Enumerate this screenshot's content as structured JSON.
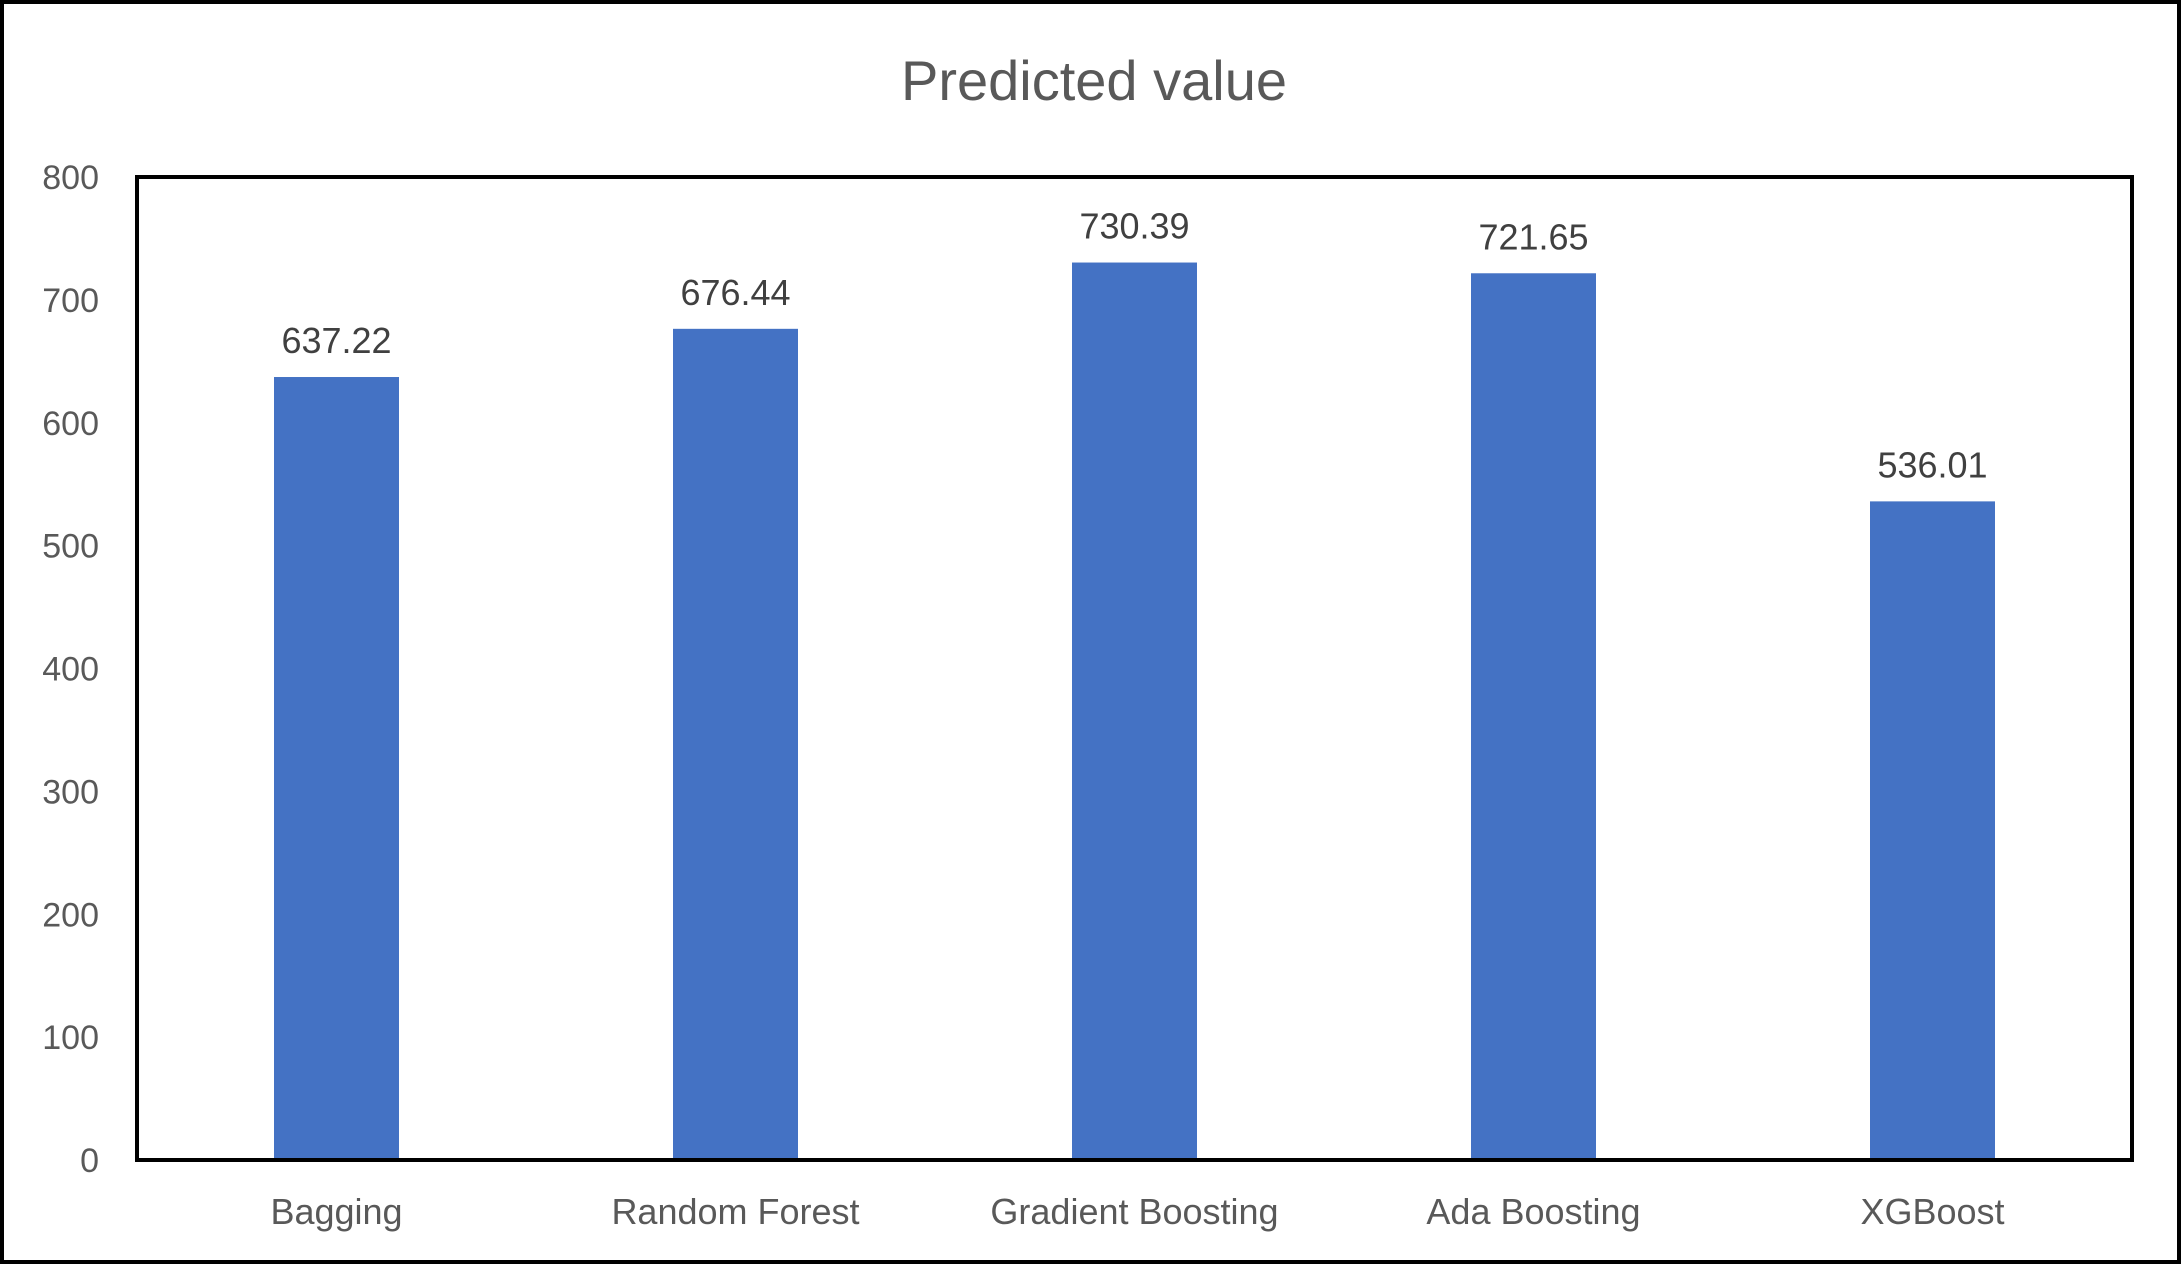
{
  "chart_data": {
    "type": "bar",
    "title": "Predicted value",
    "xlabel": "",
    "ylabel": "",
    "categories": [
      "Bagging",
      "Random Forest",
      "Gradient Boosting",
      "Ada Boosting",
      "XGBoost"
    ],
    "values": [
      637.22,
      676.44,
      730.39,
      721.65,
      536.01
    ],
    "data_labels": [
      "637.22",
      "676.44",
      "730.39",
      "721.65",
      "536.01"
    ],
    "ylim": [
      0,
      800
    ],
    "yticks": [
      0,
      100,
      200,
      300,
      400,
      500,
      600,
      700,
      800
    ],
    "grid": false,
    "legend": "none",
    "bar_color": "#4472C4"
  }
}
